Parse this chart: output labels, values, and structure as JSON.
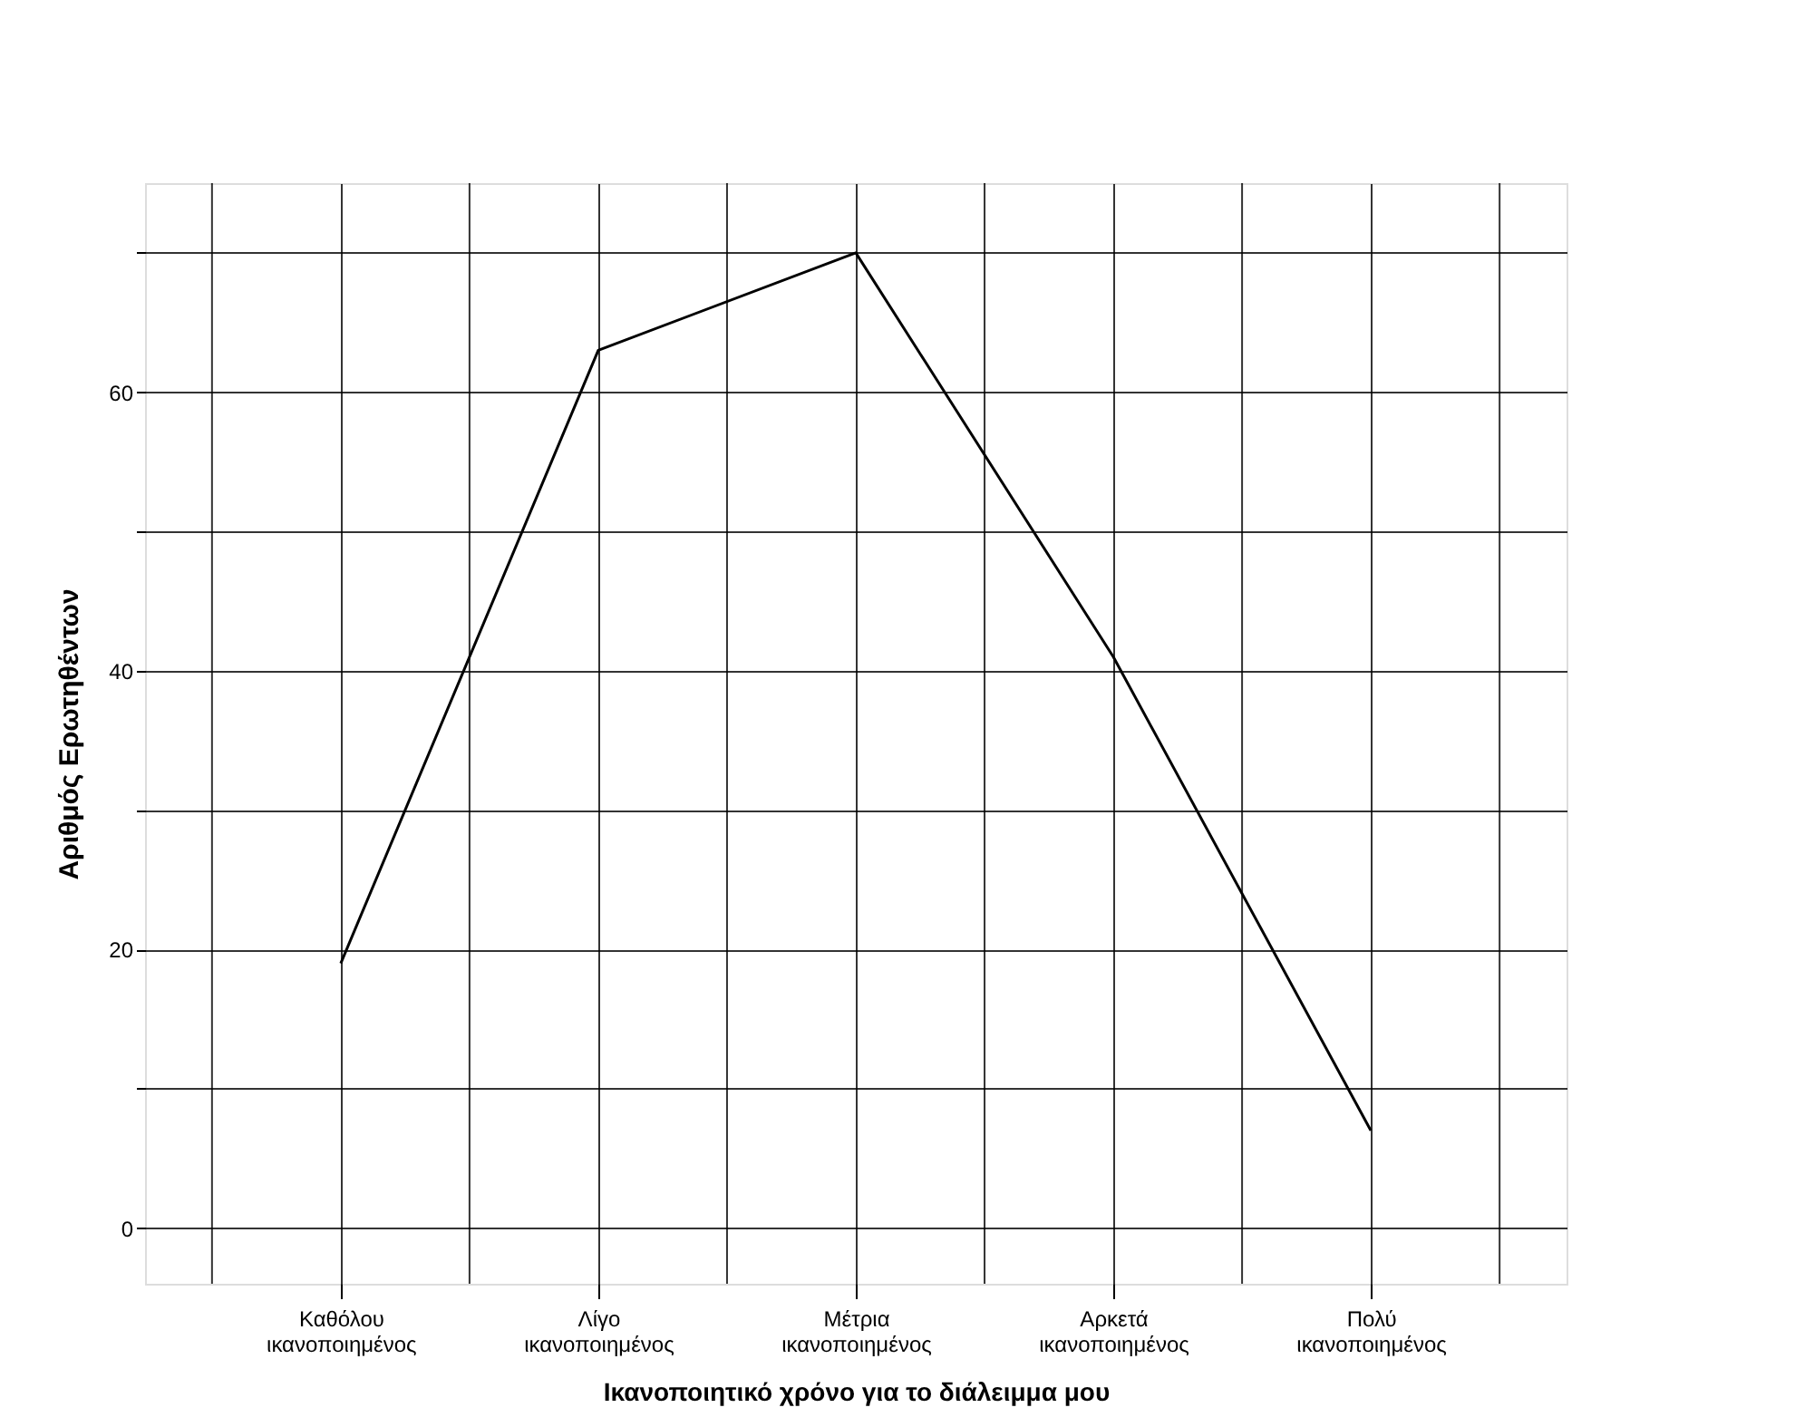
{
  "chart_data": {
    "type": "line",
    "xlabel": "Ικανοποιητικό χρόνο για το διάλειμμα μου",
    "ylabel": "Αριθμός Ερωτηθέντων",
    "categories": [
      "Καθόλου ικανοποιημένος",
      "Λίγο ικανοποιημένος",
      "Μέτρια ικανοποιημένος",
      "Αρκετά ικανοποιημένος",
      "Πολύ ικανοποιημένος"
    ],
    "series": [
      {
        "color": "#000000",
        "values": [
          19,
          63,
          70,
          41,
          7
        ]
      }
    ],
    "ylim": [
      -4,
      75
    ],
    "yticks": [
      0,
      {
        "value": 10,
        "label": null
      },
      20,
      {
        "value": 30,
        "label": null
      },
      40,
      {
        "value": 50,
        "label": null
      },
      60,
      {
        "value": 70,
        "label": null
      }
    ],
    "grid": true,
    "marker": "none",
    "line_style": "solid"
  }
}
